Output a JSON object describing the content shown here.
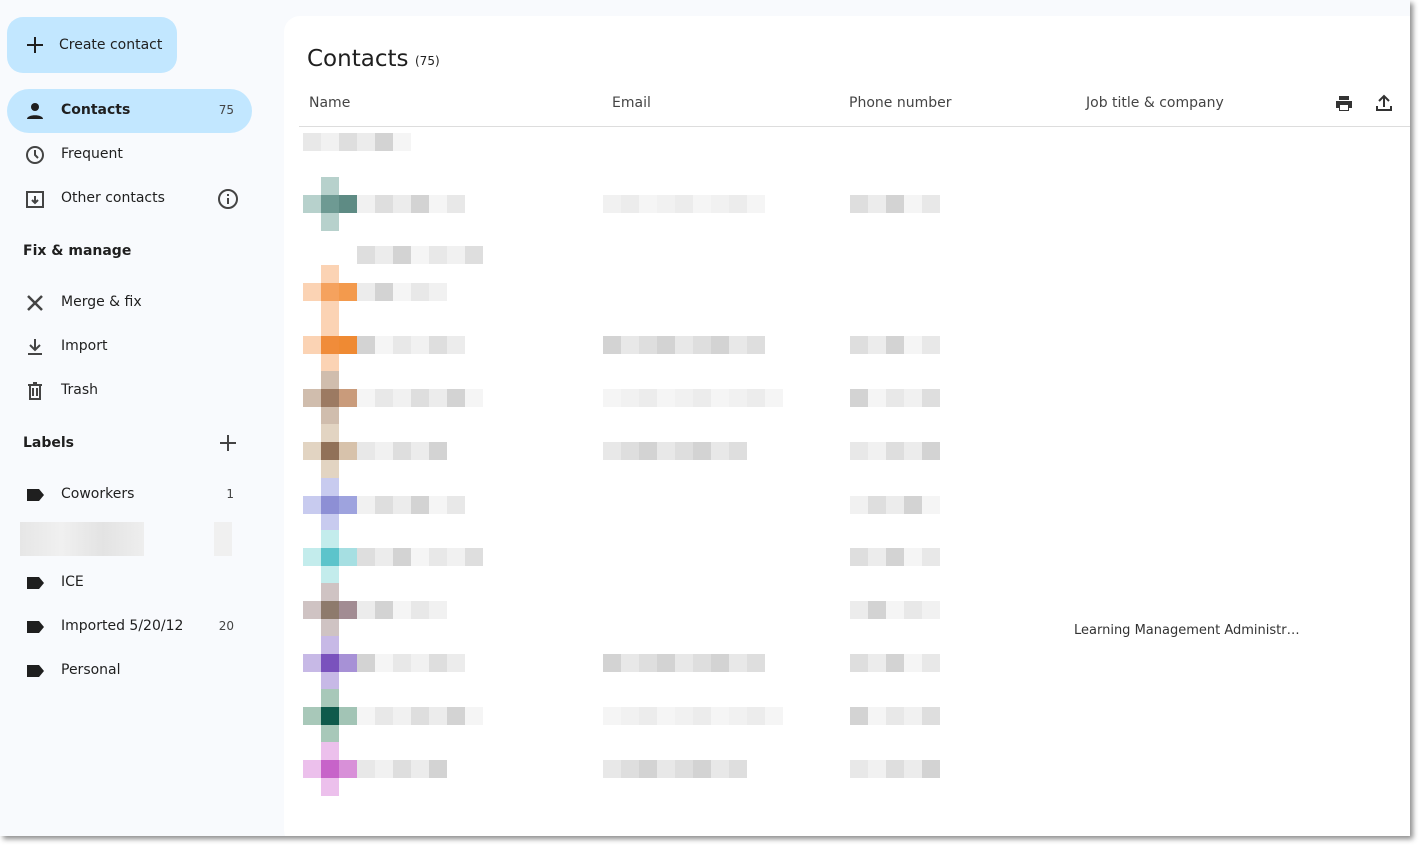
{
  "sidebar": {
    "create_button": "Create contact",
    "nav": [
      {
        "label": "Contacts",
        "count": 75
      },
      {
        "label": "Frequent"
      },
      {
        "label": "Other contacts"
      }
    ],
    "fix_manage": {
      "heading": "Fix & manage",
      "items": [
        "Merge & fix",
        "Import",
        "Trash"
      ]
    },
    "labels": {
      "heading": "Labels",
      "items": [
        {
          "label": "Coworkers",
          "count": 1
        },
        {
          "label": "ICE"
        },
        {
          "label": "Imported 5/20/12",
          "count": 20
        },
        {
          "label": "Personal"
        }
      ]
    }
  },
  "main": {
    "title": "Contacts",
    "count": "(75)",
    "columns": [
      "Name",
      "Email",
      "Phone number",
      "Job title & company"
    ],
    "job_title": "Learning Management Administr…"
  }
}
